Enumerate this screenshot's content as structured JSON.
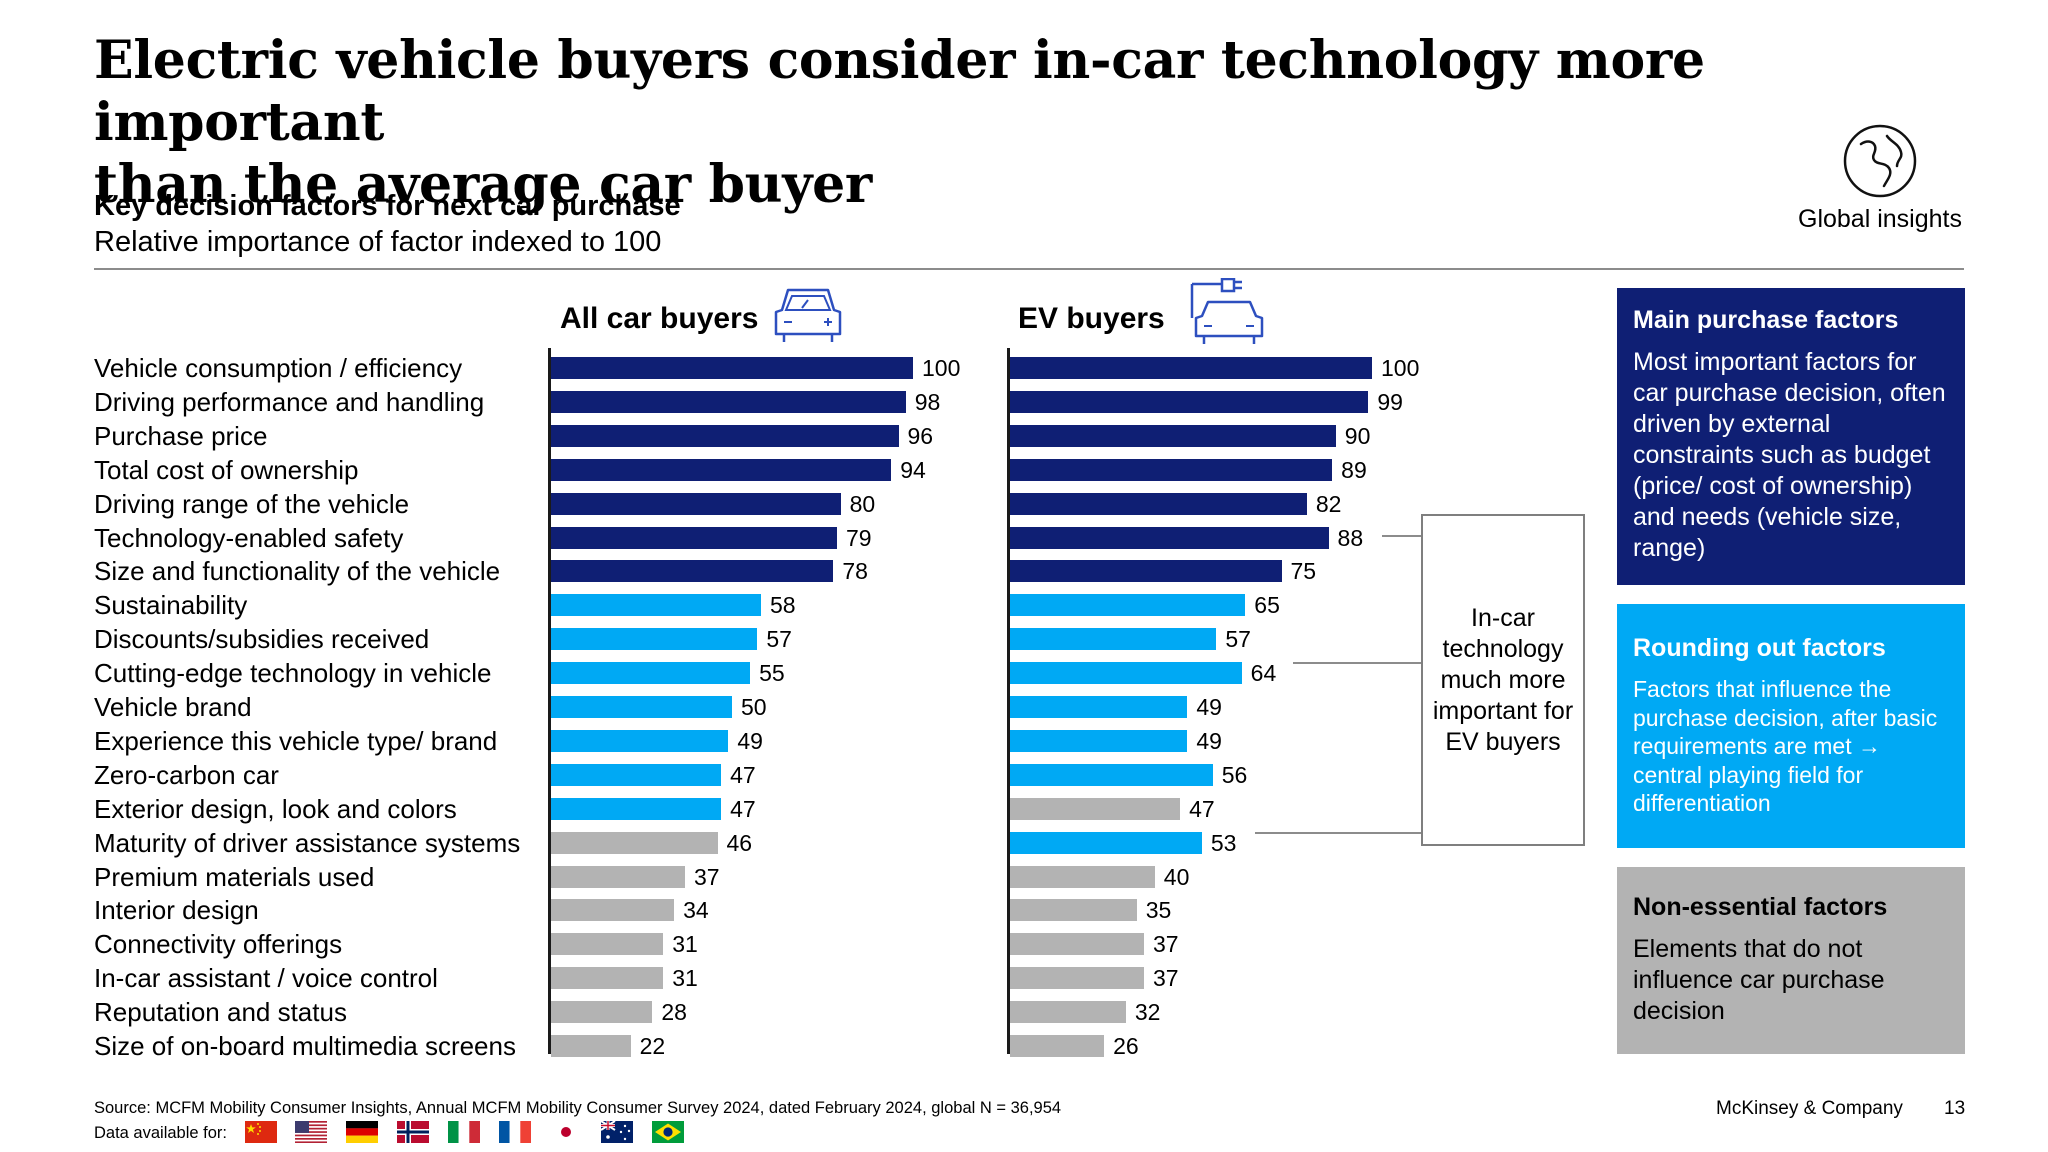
{
  "title_lines": [
    "Electric vehicle buyers consider in-car technology more important",
    "than the average car buyer"
  ],
  "subtitle": "Key decision factors for next car purchase",
  "subtitle2": "Relative importance of factor indexed to 100",
  "global_label": "Global insights",
  "colors": {
    "main": "#0f1f74",
    "rounding": "#00a9f4",
    "non_essential": "#b3b3b3"
  },
  "chart_data": [
    {
      "type": "bar",
      "orientation": "horizontal",
      "title": "All car buyers",
      "icon": "car-icon",
      "categories": [
        "Vehicle consumption / efficiency",
        "Driving performance and handling",
        "Purchase price",
        "Total cost of ownership",
        "Driving range of the vehicle",
        "Technology-enabled safety",
        "Size and functionality of the vehicle",
        "Sustainability",
        "Discounts/subsidies received",
        "Cutting-edge technology in vehicle",
        "Vehicle brand",
        "Experience this vehicle type/ brand",
        "Zero-carbon car",
        "Exterior design, look and colors",
        "Maturity of driver assistance systems",
        "Premium materials used",
        "Interior design",
        "Connectivity offerings",
        "In-car assistant / voice control",
        "Reputation and status",
        "Size of on-board multimedia screens"
      ],
      "values": [
        100,
        98,
        96,
        94,
        80,
        79,
        78,
        58,
        57,
        55,
        50,
        49,
        47,
        47,
        46,
        37,
        34,
        31,
        31,
        28,
        22
      ],
      "groups": [
        "main",
        "main",
        "main",
        "main",
        "main",
        "main",
        "main",
        "rounding",
        "rounding",
        "rounding",
        "rounding",
        "rounding",
        "rounding",
        "rounding",
        "non_essential",
        "non_essential",
        "non_essential",
        "non_essential",
        "non_essential",
        "non_essential",
        "non_essential"
      ],
      "xlim": [
        0,
        100
      ]
    },
    {
      "type": "bar",
      "orientation": "horizontal",
      "title": "EV buyers",
      "icon": "ev-charging-car-icon",
      "categories": [
        "Vehicle consumption / efficiency",
        "Driving performance and handling",
        "Purchase price",
        "Total cost of ownership",
        "Driving range of the vehicle",
        "Technology-enabled safety",
        "Size and functionality of the vehicle",
        "Sustainability",
        "Discounts/subsidies received",
        "Cutting-edge technology in vehicle",
        "Vehicle brand",
        "Experience this vehicle type/ brand",
        "Zero-carbon car",
        "Exterior design, look and colors",
        "Maturity of driver assistance systems",
        "Premium materials used",
        "Interior design",
        "Connectivity offerings",
        "In-car assistant / voice control",
        "Reputation and status",
        "Size of on-board multimedia screens"
      ],
      "values": [
        100,
        99,
        90,
        89,
        82,
        88,
        75,
        65,
        57,
        64,
        49,
        49,
        56,
        47,
        53,
        40,
        35,
        37,
        37,
        32,
        26
      ],
      "groups": [
        "main",
        "main",
        "main",
        "main",
        "main",
        "main",
        "main",
        "rounding",
        "rounding",
        "rounding",
        "rounding",
        "rounding",
        "rounding",
        "non_essential",
        "rounding",
        "non_essential",
        "non_essential",
        "non_essential",
        "non_essential",
        "non_essential",
        "non_essential"
      ],
      "xlim": [
        0,
        100
      ]
    }
  ],
  "callout": "In-car technology much more important for EV buyers",
  "legend_boxes": [
    {
      "title": "Main purchase factors",
      "text": "Most important factors for car purchase decision, often driven by external constraints such as budget (price/ cost of ownership) and needs (vehicle size, range)"
    },
    {
      "title": "Rounding out factors",
      "text": "Factors that influence the purchase decision, after basic requirements are met → central playing field for differentiation"
    },
    {
      "title": "Non-essential factors",
      "text": "Elements that do not influence car purchase decision"
    }
  ],
  "source": "Source: MCFM Mobility Consumer Insights, Annual MCFM Mobility Consumer Survey 2024, dated February 2024, global N = 36,954",
  "data_available_label": "Data available for:",
  "flags": [
    "china-flag-icon",
    "usa-flag-icon",
    "germany-flag-icon",
    "norway-flag-icon",
    "italy-flag-icon",
    "france-flag-icon",
    "japan-flag-icon",
    "australia-flag-icon",
    "brazil-flag-icon"
  ],
  "brand": "McKinsey & Company",
  "page_number": "13"
}
